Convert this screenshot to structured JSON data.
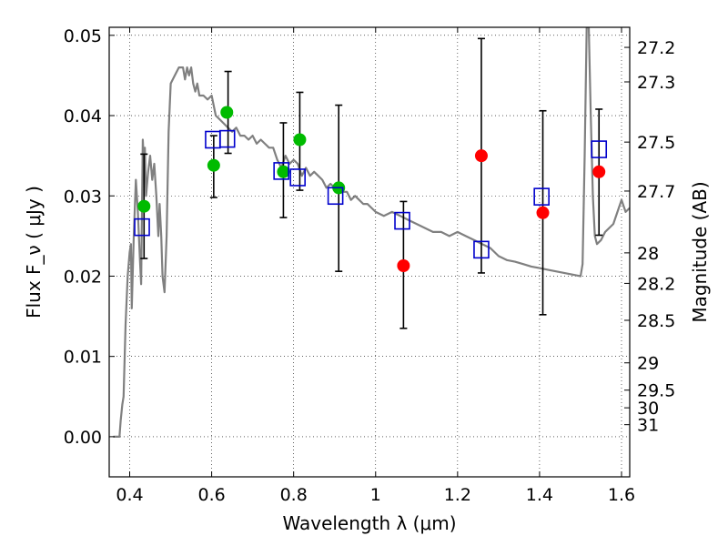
{
  "chart_data": {
    "type": "scatter",
    "xlabel": "Wavelength  λ (μm)",
    "ylabel": "Flux  F_ν  ( μJy )",
    "y2label": "Magnitude (AB)",
    "xlim": [
      0.35,
      1.62
    ],
    "ylim": [
      -0.005,
      0.051
    ],
    "x_ticks": [
      0.4,
      0.6,
      0.8,
      1.0,
      1.2,
      1.4,
      1.6
    ],
    "x_tick_labels": [
      "0.4",
      "0.6",
      "0.8",
      "1",
      "1.2",
      "1.4",
      "1.6"
    ],
    "y_ticks": [
      0.0,
      0.01,
      0.02,
      0.03,
      0.04,
      0.05
    ],
    "y_tick_labels": [
      "0.00",
      "0.01",
      "0.02",
      "0.03",
      "0.04",
      "0.05"
    ],
    "y2_ticks": [
      {
        "label": "27.2",
        "flux": 0.0485
      },
      {
        "label": "27.3",
        "flux": 0.0442
      },
      {
        "label": "27.5",
        "flux": 0.0367
      },
      {
        "label": "27.7",
        "flux": 0.0306
      },
      {
        "label": "28",
        "flux": 0.0229
      },
      {
        "label": "28.2",
        "flux": 0.0191
      },
      {
        "label": "28.5",
        "flux": 0.0145
      },
      {
        "label": "29",
        "flux": 0.0092
      },
      {
        "label": "29.5",
        "flux": 0.0058
      },
      {
        "label": "30",
        "flux": 0.0036
      },
      {
        "label": "31",
        "flux": 0.0015
      }
    ],
    "grid": true,
    "colors": {
      "model": "#808080",
      "green": "#00bb00",
      "red": "#ff0000",
      "blue": "#0000cc",
      "errorbar": "#000000"
    },
    "series": [
      {
        "kind": "line",
        "x": [
          0.36,
          0.375,
          0.378,
          0.382,
          0.385,
          0.39,
          0.395,
          0.4,
          0.403,
          0.405,
          0.41,
          0.415,
          0.42,
          0.425,
          0.428,
          0.43,
          0.432,
          0.435,
          0.437,
          0.44,
          0.445,
          0.45,
          0.455,
          0.46,
          0.465,
          0.47,
          0.473,
          0.477,
          0.48,
          0.485,
          0.49,
          0.495,
          0.5,
          0.51,
          0.52,
          0.53,
          0.535,
          0.54,
          0.545,
          0.55,
          0.555,
          0.56,
          0.565,
          0.57,
          0.58,
          0.59,
          0.6,
          0.61,
          0.62,
          0.63,
          0.64,
          0.65,
          0.66,
          0.67,
          0.68,
          0.69,
          0.7,
          0.71,
          0.72,
          0.73,
          0.74,
          0.75,
          0.76,
          0.77,
          0.78,
          0.79,
          0.8,
          0.81,
          0.82,
          0.83,
          0.84,
          0.85,
          0.86,
          0.87,
          0.88,
          0.89,
          0.9,
          0.91,
          0.92,
          0.93,
          0.94,
          0.95,
          0.96,
          0.97,
          0.98,
          0.99,
          1.0,
          1.02,
          1.04,
          1.06,
          1.08,
          1.1,
          1.12,
          1.14,
          1.16,
          1.18,
          1.2,
          1.22,
          1.24,
          1.26,
          1.28,
          1.3,
          1.32,
          1.34,
          1.36,
          1.38,
          1.4,
          1.42,
          1.44,
          1.46,
          1.48,
          1.5,
          1.505,
          1.51,
          1.515,
          1.52,
          1.525,
          1.53,
          1.535,
          1.54,
          1.55,
          1.56,
          1.57,
          1.58,
          1.59,
          1.6,
          1.61,
          1.62
        ],
        "y": [
          0.0,
          0.0,
          0.002,
          0.004,
          0.005,
          0.014,
          0.02,
          0.023,
          0.024,
          0.016,
          0.025,
          0.032,
          0.028,
          0.022,
          0.019,
          0.028,
          0.037,
          0.034,
          0.036,
          0.03,
          0.033,
          0.035,
          0.032,
          0.034,
          0.03,
          0.025,
          0.029,
          0.025,
          0.02,
          0.018,
          0.025,
          0.038,
          0.044,
          0.045,
          0.046,
          0.046,
          0.0445,
          0.046,
          0.045,
          0.046,
          0.044,
          0.043,
          0.044,
          0.0425,
          0.0425,
          0.042,
          0.0425,
          0.04,
          0.0395,
          0.039,
          0.0385,
          0.038,
          0.0385,
          0.0375,
          0.0375,
          0.037,
          0.0375,
          0.0365,
          0.037,
          0.0365,
          0.036,
          0.036,
          0.0345,
          0.0335,
          0.035,
          0.034,
          0.0345,
          0.034,
          0.0325,
          0.0335,
          0.0325,
          0.033,
          0.0325,
          0.032,
          0.031,
          0.0315,
          0.031,
          0.0305,
          0.0305,
          0.0305,
          0.0295,
          0.03,
          0.0295,
          0.029,
          0.029,
          0.0285,
          0.028,
          0.0275,
          0.028,
          0.0275,
          0.027,
          0.0265,
          0.026,
          0.0255,
          0.0255,
          0.025,
          0.0255,
          0.025,
          0.0245,
          0.024,
          0.0235,
          0.0225,
          0.022,
          0.0218,
          0.0215,
          0.0212,
          0.021,
          0.0208,
          0.0206,
          0.0204,
          0.0202,
          0.02,
          0.0215,
          0.035,
          0.051,
          0.051,
          0.04,
          0.03,
          0.025,
          0.024,
          0.0245,
          0.0255,
          0.026,
          0.0265,
          0.028,
          0.0295,
          0.028,
          0.0285
        ]
      },
      {
        "kind": "points",
        "color": "green",
        "x": [
          0.435,
          0.605,
          0.637,
          0.775,
          0.815,
          0.91
        ],
        "y": [
          0.0287,
          0.0338,
          0.0404,
          0.033,
          0.037,
          0.031
        ]
      },
      {
        "kind": "points",
        "color": "red",
        "x": [
          1.068,
          1.258,
          1.408,
          1.545
        ],
        "y": [
          0.0213,
          0.035,
          0.0279,
          0.033
        ]
      },
      {
        "kind": "squares",
        "color": "blue",
        "x": [
          0.43,
          0.603,
          0.638,
          0.77,
          0.81,
          0.902,
          1.065,
          1.258,
          1.405,
          1.545
        ],
        "y": [
          0.0261,
          0.037,
          0.0371,
          0.0331,
          0.0323,
          0.03,
          0.0269,
          0.0233,
          0.0299,
          0.0358
        ]
      },
      {
        "kind": "errorbars",
        "x": [
          0.435,
          0.605,
          0.64,
          0.775,
          0.815,
          0.91,
          1.068,
          1.258,
          1.408,
          1.545
        ],
        "y_low": [
          0.0222,
          0.0298,
          0.0353,
          0.0273,
          0.0307,
          0.0206,
          0.0135,
          0.0204,
          0.0152,
          0.0251
        ],
        "y_high": [
          0.0352,
          0.0375,
          0.0455,
          0.0391,
          0.0429,
          0.0413,
          0.0293,
          0.0496,
          0.0406,
          0.0408
        ]
      }
    ]
  }
}
